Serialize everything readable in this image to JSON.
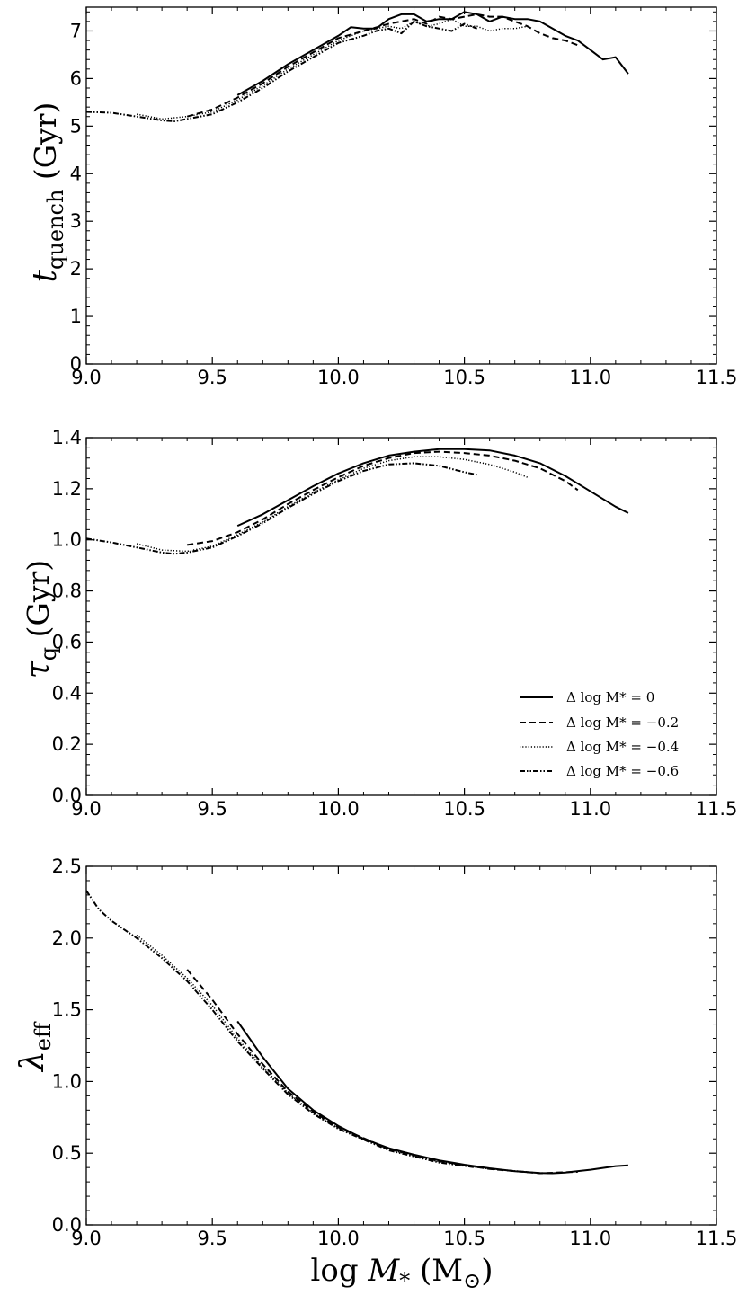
{
  "figure": {
    "xlabel": "log M* (M⊙)",
    "xlabel_parts": {
      "pre": "log ",
      "var": "M",
      "sub": "*",
      "unit": " (M",
      "unit_sub": "⊙",
      "close": ")"
    }
  },
  "panels": [
    {
      "id": "tquench",
      "ylabel_parts": {
        "var": "t",
        "sub": "quench",
        "unit": " (Gyr)"
      }
    },
    {
      "id": "tau",
      "ylabel_parts": {
        "var": "τ",
        "sub": "q",
        "unit": " (Gyr)"
      }
    },
    {
      "id": "lambda",
      "ylabel_parts": {
        "var": "λ",
        "sub": "eff",
        "unit": ""
      }
    }
  ],
  "legend": {
    "entries": [
      "Δ log M* = 0",
      "Δ log M* = −0.2",
      "Δ log M* = −0.4",
      "Δ log M* = −0.6"
    ],
    "placement": "lower-right of middle panel"
  },
  "chart_data": [
    {
      "type": "line",
      "title": "",
      "xlabel": "",
      "ylabel": "t_quench (Gyr)",
      "xlim": [
        9.0,
        11.5
      ],
      "ylim": [
        0,
        7.5
      ],
      "xticks": [
        9.0,
        9.5,
        10.0,
        10.5,
        11.0,
        11.5
      ],
      "yticks": [
        0,
        1,
        2,
        3,
        4,
        5,
        6,
        7
      ],
      "ytick_labels": [
        "0",
        "1",
        "2",
        "3",
        "4",
        "5",
        "6",
        "7"
      ],
      "series": [
        {
          "name": "Δ log M* = 0",
          "style": "solid",
          "x": [
            9.6,
            9.7,
            9.8,
            9.9,
            10.0,
            10.05,
            10.1,
            10.15,
            10.2,
            10.25,
            10.3,
            10.35,
            10.4,
            10.45,
            10.5,
            10.55,
            10.6,
            10.65,
            10.7,
            10.75,
            10.8,
            10.85,
            10.9,
            10.95,
            11.0,
            11.05,
            11.1,
            11.15
          ],
          "y": [
            5.65,
            5.95,
            6.3,
            6.6,
            6.9,
            7.08,
            7.05,
            7.05,
            7.25,
            7.35,
            7.35,
            7.2,
            7.25,
            7.25,
            7.4,
            7.35,
            7.2,
            7.3,
            7.25,
            7.25,
            7.2,
            7.05,
            6.9,
            6.8,
            6.6,
            6.4,
            6.45,
            6.1
          ]
        },
        {
          "name": "Δ log M* = −0.2",
          "style": "dashed",
          "x": [
            9.4,
            9.5,
            9.6,
            9.7,
            9.8,
            9.9,
            10.0,
            10.1,
            10.2,
            10.3,
            10.35,
            10.4,
            10.45,
            10.5,
            10.55,
            10.6,
            10.65,
            10.7,
            10.75,
            10.8,
            10.85,
            10.9,
            10.95
          ],
          "y": [
            5.2,
            5.35,
            5.6,
            5.9,
            6.25,
            6.55,
            6.85,
            7.0,
            7.15,
            7.25,
            7.15,
            7.3,
            7.25,
            7.3,
            7.35,
            7.3,
            7.3,
            7.2,
            7.1,
            6.95,
            6.85,
            6.8,
            6.7
          ]
        },
        {
          "name": "Δ log M* = −0.4",
          "style": "dotted",
          "x": [
            9.2,
            9.3,
            9.4,
            9.5,
            9.6,
            9.7,
            9.8,
            9.9,
            10.0,
            10.1,
            10.2,
            10.25,
            10.3,
            10.35,
            10.4,
            10.45,
            10.5,
            10.55,
            10.6,
            10.65,
            10.7,
            10.75
          ],
          "y": [
            5.25,
            5.15,
            5.2,
            5.3,
            5.55,
            5.85,
            6.2,
            6.5,
            6.8,
            7.0,
            7.1,
            7.05,
            7.2,
            7.1,
            7.15,
            7.25,
            7.1,
            7.1,
            7.0,
            7.05,
            7.05,
            7.1
          ]
        },
        {
          "name": "Δ log M* = −0.6",
          "style": "dashdot",
          "x": [
            9.0,
            9.1,
            9.2,
            9.3,
            9.35,
            9.4,
            9.5,
            9.6,
            9.7,
            9.8,
            9.9,
            10.0,
            10.1,
            10.15,
            10.2,
            10.25,
            10.3,
            10.35,
            10.4,
            10.45,
            10.5,
            10.55
          ],
          "y": [
            5.3,
            5.28,
            5.2,
            5.12,
            5.1,
            5.15,
            5.25,
            5.5,
            5.8,
            6.15,
            6.45,
            6.75,
            6.9,
            7.0,
            7.05,
            6.95,
            7.2,
            7.1,
            7.05,
            7.0,
            7.15,
            7.05
          ]
        }
      ]
    },
    {
      "type": "line",
      "title": "",
      "xlabel": "",
      "ylabel": "τ_q (Gyr)",
      "xlim": [
        9.0,
        11.5
      ],
      "ylim": [
        0.0,
        1.4
      ],
      "xticks": [
        9.0,
        9.5,
        10.0,
        10.5,
        11.0,
        11.5
      ],
      "yticks": [
        0.0,
        0.2,
        0.4,
        0.6,
        0.8,
        1.0,
        1.2,
        1.4
      ],
      "ytick_labels": [
        "0.0",
        "0.2",
        "0.4",
        "0.6",
        "0.8",
        "1.0",
        "1.2",
        "1.4"
      ],
      "series": [
        {
          "name": "Δ log M* = 0",
          "style": "solid",
          "x": [
            9.6,
            9.7,
            9.8,
            9.9,
            10.0,
            10.1,
            10.2,
            10.3,
            10.4,
            10.5,
            10.6,
            10.7,
            10.8,
            10.9,
            11.0,
            11.1,
            11.15
          ],
          "y": [
            1.055,
            1.1,
            1.155,
            1.21,
            1.26,
            1.3,
            1.33,
            1.345,
            1.355,
            1.355,
            1.35,
            1.33,
            1.3,
            1.25,
            1.19,
            1.13,
            1.105
          ]
        },
        {
          "name": "Δ log M* = −0.2",
          "style": "dashed",
          "x": [
            9.4,
            9.5,
            9.6,
            9.7,
            9.8,
            9.9,
            10.0,
            10.1,
            10.2,
            10.3,
            10.4,
            10.5,
            10.6,
            10.7,
            10.8,
            10.9,
            10.95
          ],
          "y": [
            0.98,
            0.995,
            1.03,
            1.08,
            1.14,
            1.195,
            1.245,
            1.29,
            1.32,
            1.34,
            1.345,
            1.34,
            1.33,
            1.31,
            1.28,
            1.23,
            1.195
          ]
        },
        {
          "name": "Δ log M* = −0.4",
          "style": "dotted",
          "x": [
            9.2,
            9.3,
            9.4,
            9.5,
            9.6,
            9.7,
            9.8,
            9.9,
            10.0,
            10.1,
            10.2,
            10.3,
            10.4,
            10.5,
            10.6,
            10.7,
            10.75
          ],
          "y": [
            0.985,
            0.96,
            0.955,
            0.975,
            1.02,
            1.07,
            1.13,
            1.185,
            1.235,
            1.28,
            1.31,
            1.325,
            1.325,
            1.315,
            1.295,
            1.265,
            1.245
          ]
        },
        {
          "name": "Δ log M* = −0.6",
          "style": "dashdot",
          "x": [
            9.0,
            9.1,
            9.2,
            9.3,
            9.35,
            9.4,
            9.5,
            9.6,
            9.7,
            9.8,
            9.9,
            10.0,
            10.1,
            10.2,
            10.3,
            10.4,
            10.5,
            10.55
          ],
          "y": [
            1.005,
            0.99,
            0.97,
            0.95,
            0.945,
            0.95,
            0.97,
            1.015,
            1.065,
            1.125,
            1.18,
            1.23,
            1.27,
            1.295,
            1.3,
            1.29,
            1.265,
            1.255
          ]
        }
      ]
    },
    {
      "type": "line",
      "title": "",
      "xlabel": "log M* (M⊙)",
      "ylabel": "λ_eff",
      "xlim": [
        9.0,
        11.5
      ],
      "ylim": [
        0.0,
        2.5
      ],
      "xticks": [
        9.0,
        9.5,
        10.0,
        10.5,
        11.0,
        11.5
      ],
      "yticks": [
        0.0,
        0.5,
        1.0,
        1.5,
        2.0,
        2.5
      ],
      "ytick_labels": [
        "0.0",
        "0.5",
        "1.0",
        "1.5",
        "2.0",
        "2.5"
      ],
      "series": [
        {
          "name": "Δ log M* = 0",
          "style": "solid",
          "x": [
            9.6,
            9.7,
            9.8,
            9.9,
            10.0,
            10.1,
            10.2,
            10.3,
            10.4,
            10.5,
            10.6,
            10.7,
            10.8,
            10.85,
            10.9,
            11.0,
            11.1,
            11.15
          ],
          "y": [
            1.42,
            1.17,
            0.95,
            0.8,
            0.69,
            0.6,
            0.535,
            0.49,
            0.45,
            0.42,
            0.395,
            0.375,
            0.362,
            0.36,
            0.365,
            0.385,
            0.41,
            0.415
          ]
        },
        {
          "name": "Δ log M* = −0.2",
          "style": "dashed",
          "x": [
            9.4,
            9.5,
            9.6,
            9.7,
            9.8,
            9.9,
            10.0,
            10.2,
            10.4,
            10.6,
            10.8,
            10.95
          ],
          "y": [
            1.78,
            1.57,
            1.33,
            1.12,
            0.93,
            0.79,
            0.68,
            0.53,
            0.445,
            0.39,
            0.36,
            0.37
          ]
        },
        {
          "name": "Δ log M* = −0.4",
          "style": "dotted",
          "x": [
            9.2,
            9.3,
            9.4,
            9.5,
            9.6,
            9.7,
            9.8,
            9.9,
            10.0,
            10.2,
            10.4,
            10.6,
            10.75
          ],
          "y": [
            2.02,
            1.88,
            1.72,
            1.53,
            1.3,
            1.1,
            0.92,
            0.78,
            0.675,
            0.525,
            0.44,
            0.39,
            0.37
          ]
        },
        {
          "name": "Δ log M* = −0.6",
          "style": "dashdot",
          "x": [
            9.0,
            9.05,
            9.1,
            9.2,
            9.3,
            9.4,
            9.5,
            9.6,
            9.7,
            9.8,
            9.9,
            10.0,
            10.2,
            10.4,
            10.55
          ],
          "y": [
            2.33,
            2.2,
            2.12,
            2.0,
            1.86,
            1.7,
            1.5,
            1.28,
            1.09,
            0.91,
            0.775,
            0.67,
            0.52,
            0.435,
            0.4
          ]
        }
      ]
    }
  ]
}
